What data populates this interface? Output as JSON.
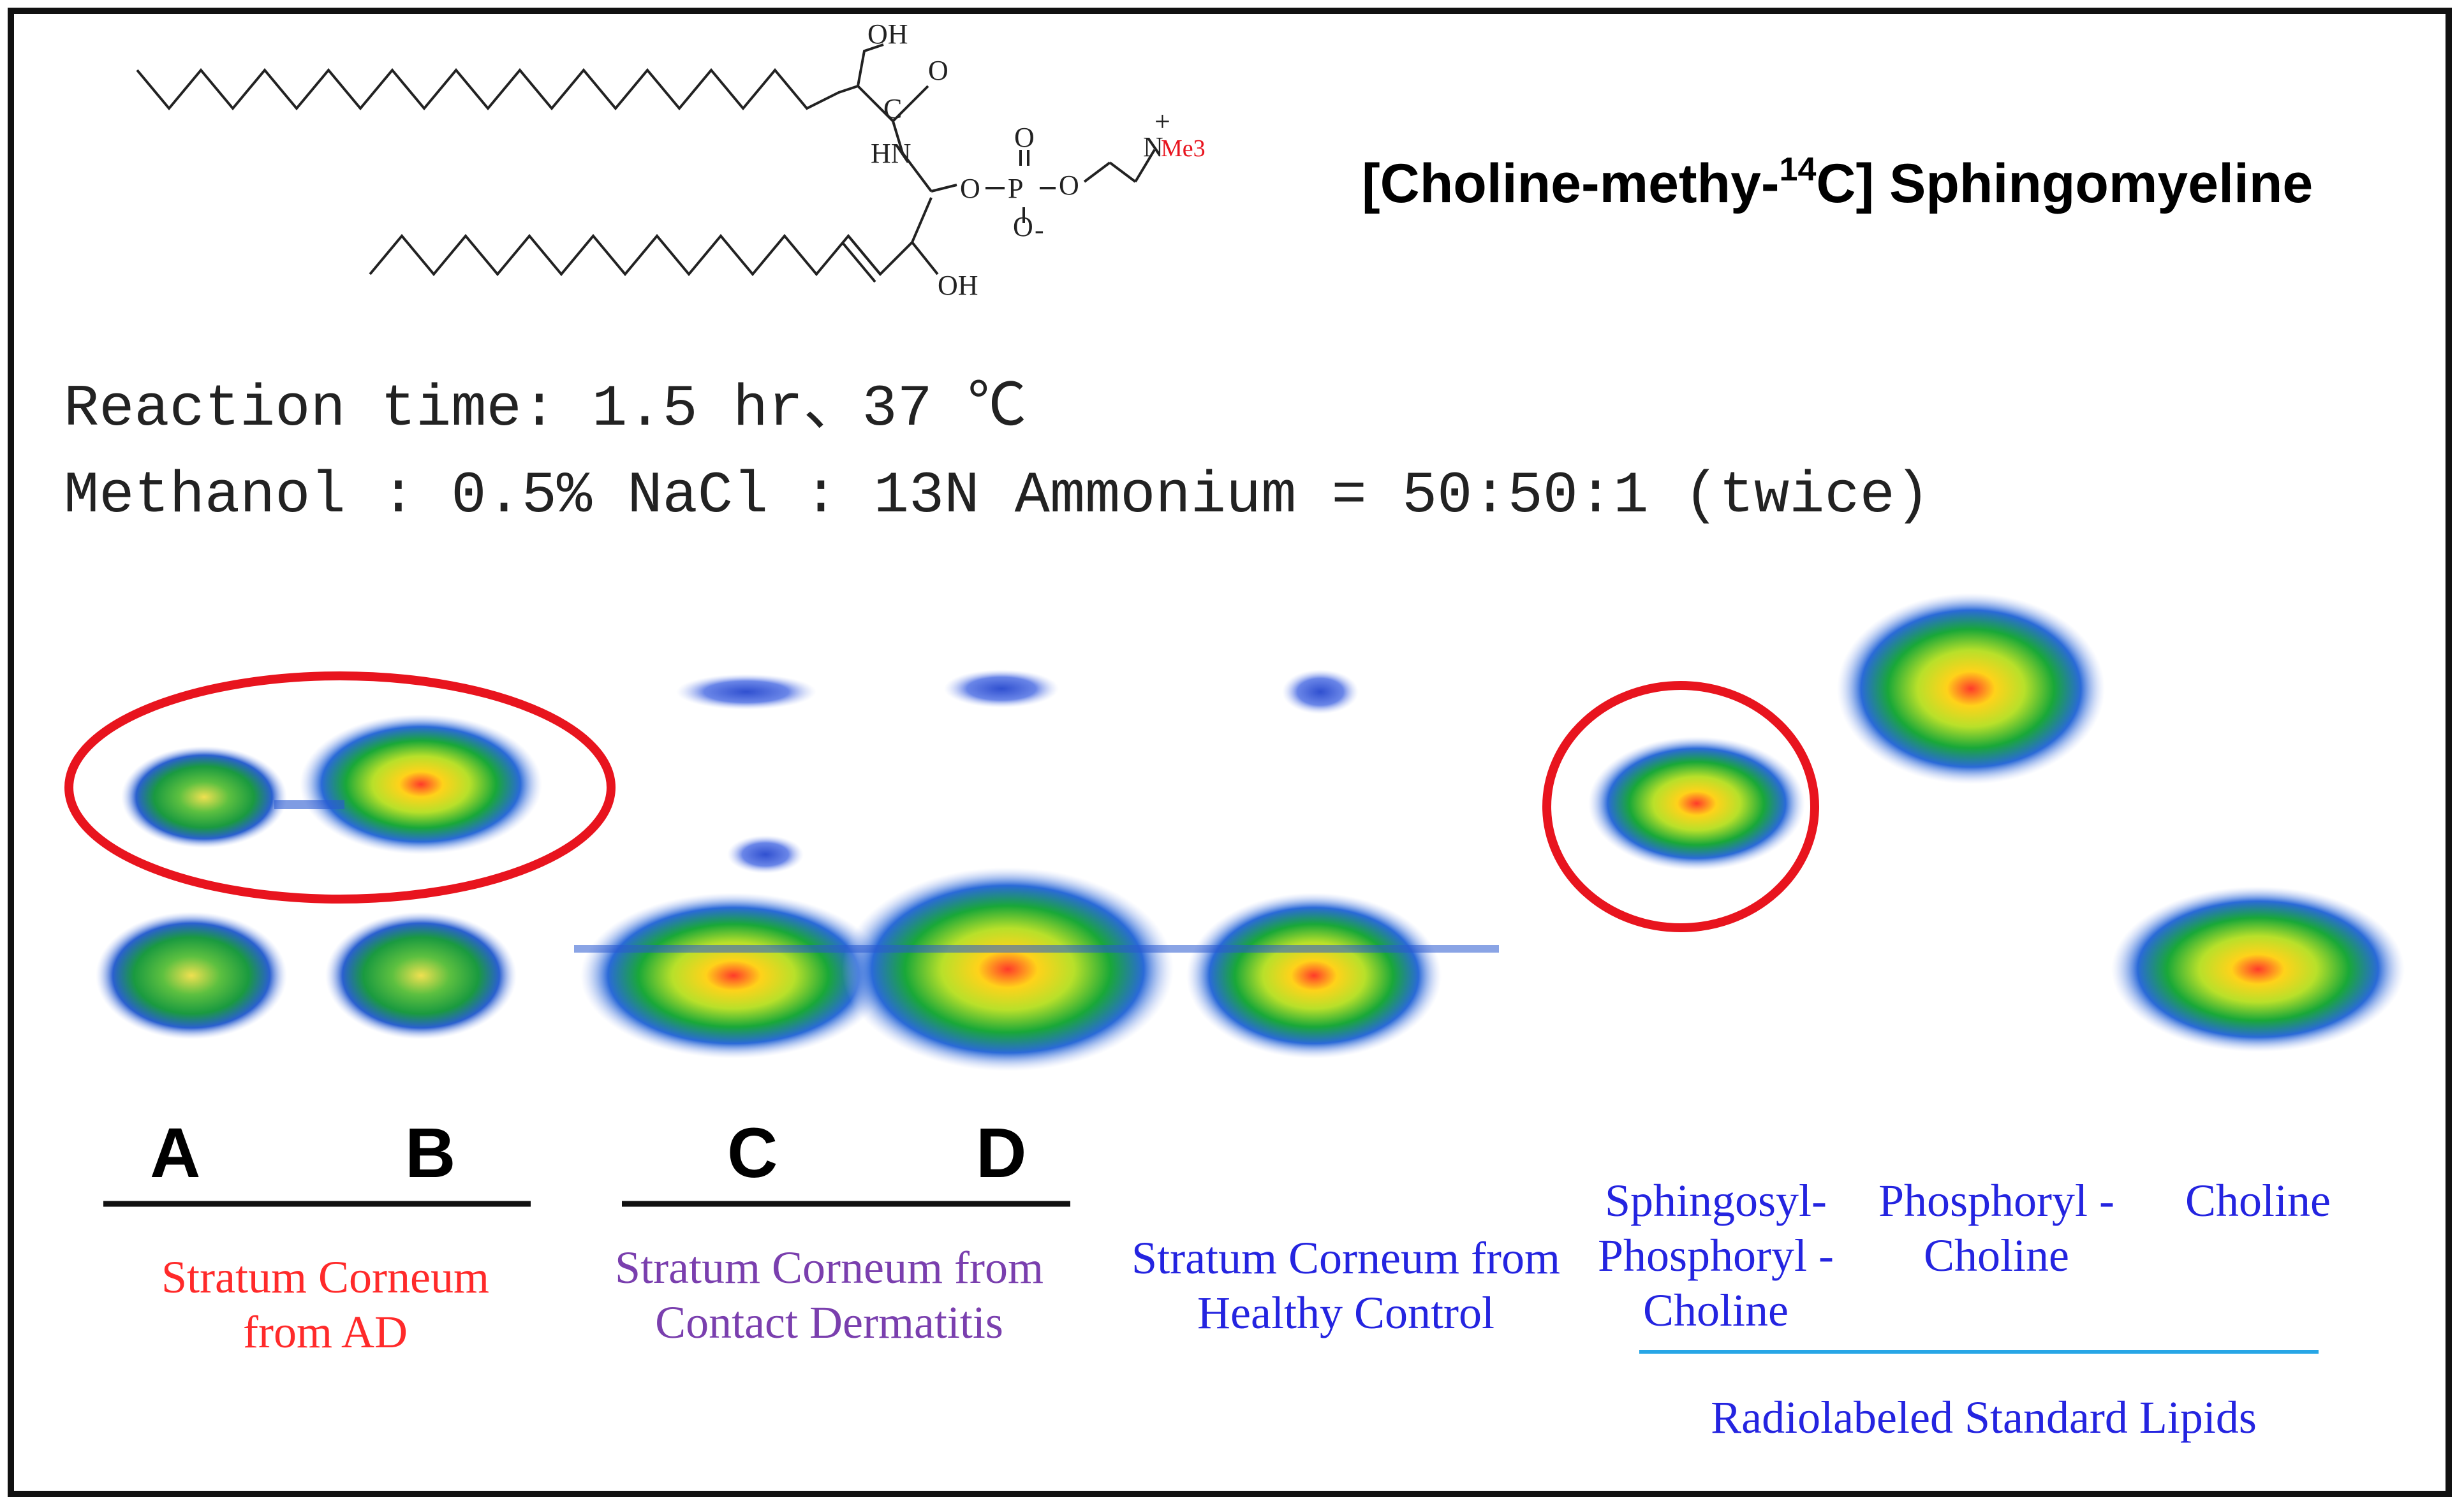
{
  "title": {
    "prefix": "[Choline-methy-",
    "superscript": "14",
    "suffix": "C] Sphingomyeline"
  },
  "structure_labels": {
    "oh_top": "OH",
    "o_top": "O",
    "c": "C",
    "hn": "HN",
    "o1": "O",
    "p": "P",
    "o2": "O",
    "o_double": "O",
    "o_minus": "O",
    "minus": "-",
    "n": "N",
    "plus": "+",
    "me3": "Me3",
    "oh_bottom": "OH"
  },
  "conditions": {
    "reaction": "Reaction time: 1.5 hr、37 ℃",
    "solvent": "Methanol : 0.5% NaCl : 13N Ammonium = 50:50:1 (twice)"
  },
  "lanes": {
    "A": "A",
    "B": "B",
    "C": "C",
    "D": "D"
  },
  "groups": {
    "ad": "Stratum Corneum from AD",
    "contact": "Stratum Corneum from Contact Dermatitis",
    "healthy": "Stratum Corneum from Healthy Control",
    "spc": "Sphingosyl- Phosphoryl -Choline",
    "pc": "Phosphoryl -Choline",
    "choline": "Choline",
    "standards": "Radiolabeled Standard Lipids"
  },
  "colors": {
    "ad_label": "#ff2a2a",
    "contact_label": "#7a3fae",
    "healthy_label": "#2424e0",
    "highlight_ring": "#e8141e",
    "standards_rule": "#27a6e6"
  }
}
